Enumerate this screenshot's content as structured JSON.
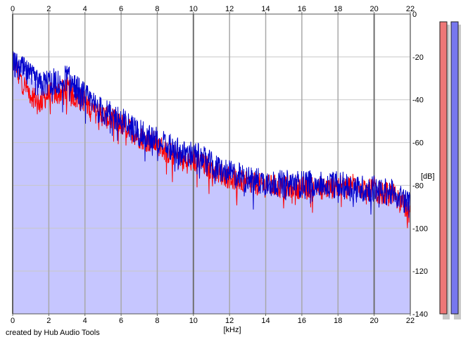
{
  "chart_data": {
    "type": "area",
    "xlabel": "[kHz]",
    "ylabel": "[dB]",
    "xlim": [
      0,
      22
    ],
    "ylim": [
      -140,
      0
    ],
    "x_ticks": [
      0,
      2,
      4,
      6,
      8,
      10,
      12,
      14,
      16,
      18,
      20,
      22
    ],
    "y_ticks": [
      0,
      -20,
      -40,
      -60,
      -80,
      -100,
      -120,
      -140
    ],
    "grid": true,
    "colors": {
      "channel_a": "#ff0000",
      "channel_b": "#0000cc",
      "fill": "#c6c6ff",
      "meter_a": "#ee7777",
      "meter_b": "#7777ee"
    },
    "series": [
      {
        "color": "#ff0000",
        "x": [
          0,
          0.5,
          1,
          1.5,
          2,
          2.5,
          3,
          3.5,
          4,
          4.5,
          5,
          5.5,
          6,
          6.5,
          7,
          7.5,
          8,
          8.5,
          9,
          9.5,
          10,
          10.5,
          11,
          11.5,
          12,
          12.5,
          13,
          13.5,
          14,
          14.5,
          15,
          15.5,
          16,
          16.5,
          17,
          17.5,
          18,
          18.5,
          19,
          19.5,
          20,
          20.5,
          21,
          21.5,
          22
        ],
        "values": [
          -20,
          -30,
          -36,
          -40,
          -36,
          -36,
          -33,
          -38,
          -39,
          -44,
          -46,
          -48,
          -50,
          -53,
          -56,
          -58,
          -59,
          -63,
          -65,
          -68,
          -67,
          -69,
          -71,
          -73,
          -75,
          -76,
          -78,
          -78,
          -79,
          -79,
          -80,
          -79,
          -80,
          -79,
          -80,
          -80,
          -79,
          -80,
          -76,
          -82,
          -80,
          -83,
          -82,
          -86,
          -92
        ]
      },
      {
        "color": "#0000cc",
        "x": [
          0,
          0.5,
          1,
          1.5,
          2,
          2.5,
          3,
          3.5,
          4,
          4.5,
          5,
          5.5,
          6,
          6.5,
          7,
          7.5,
          8,
          8.5,
          9,
          9.5,
          10,
          10.5,
          11,
          11.5,
          12,
          12.5,
          13,
          13.5,
          14,
          14.5,
          15,
          15.5,
          16,
          16.5,
          17,
          17.5,
          18,
          18.5,
          19,
          19.5,
          20,
          20.5,
          21,
          21.5,
          22
        ],
        "values": [
          -22,
          -24,
          -28,
          -32,
          -30,
          -30,
          -28,
          -33,
          -37,
          -41,
          -44,
          -46,
          -48,
          -51,
          -54,
          -56,
          -57,
          -60,
          -62,
          -64,
          -64,
          -66,
          -69,
          -71,
          -73,
          -74,
          -76,
          -76,
          -77,
          -77,
          -78,
          -77,
          -78,
          -77,
          -78,
          -78,
          -78,
          -79,
          -80,
          -80,
          -80,
          -81,
          -82,
          -84,
          -88
        ]
      }
    ]
  },
  "footer": {
    "credit": "created by Hub Audio Tools"
  },
  "meters": {
    "left_level": 1.0,
    "right_level": 1.0
  }
}
